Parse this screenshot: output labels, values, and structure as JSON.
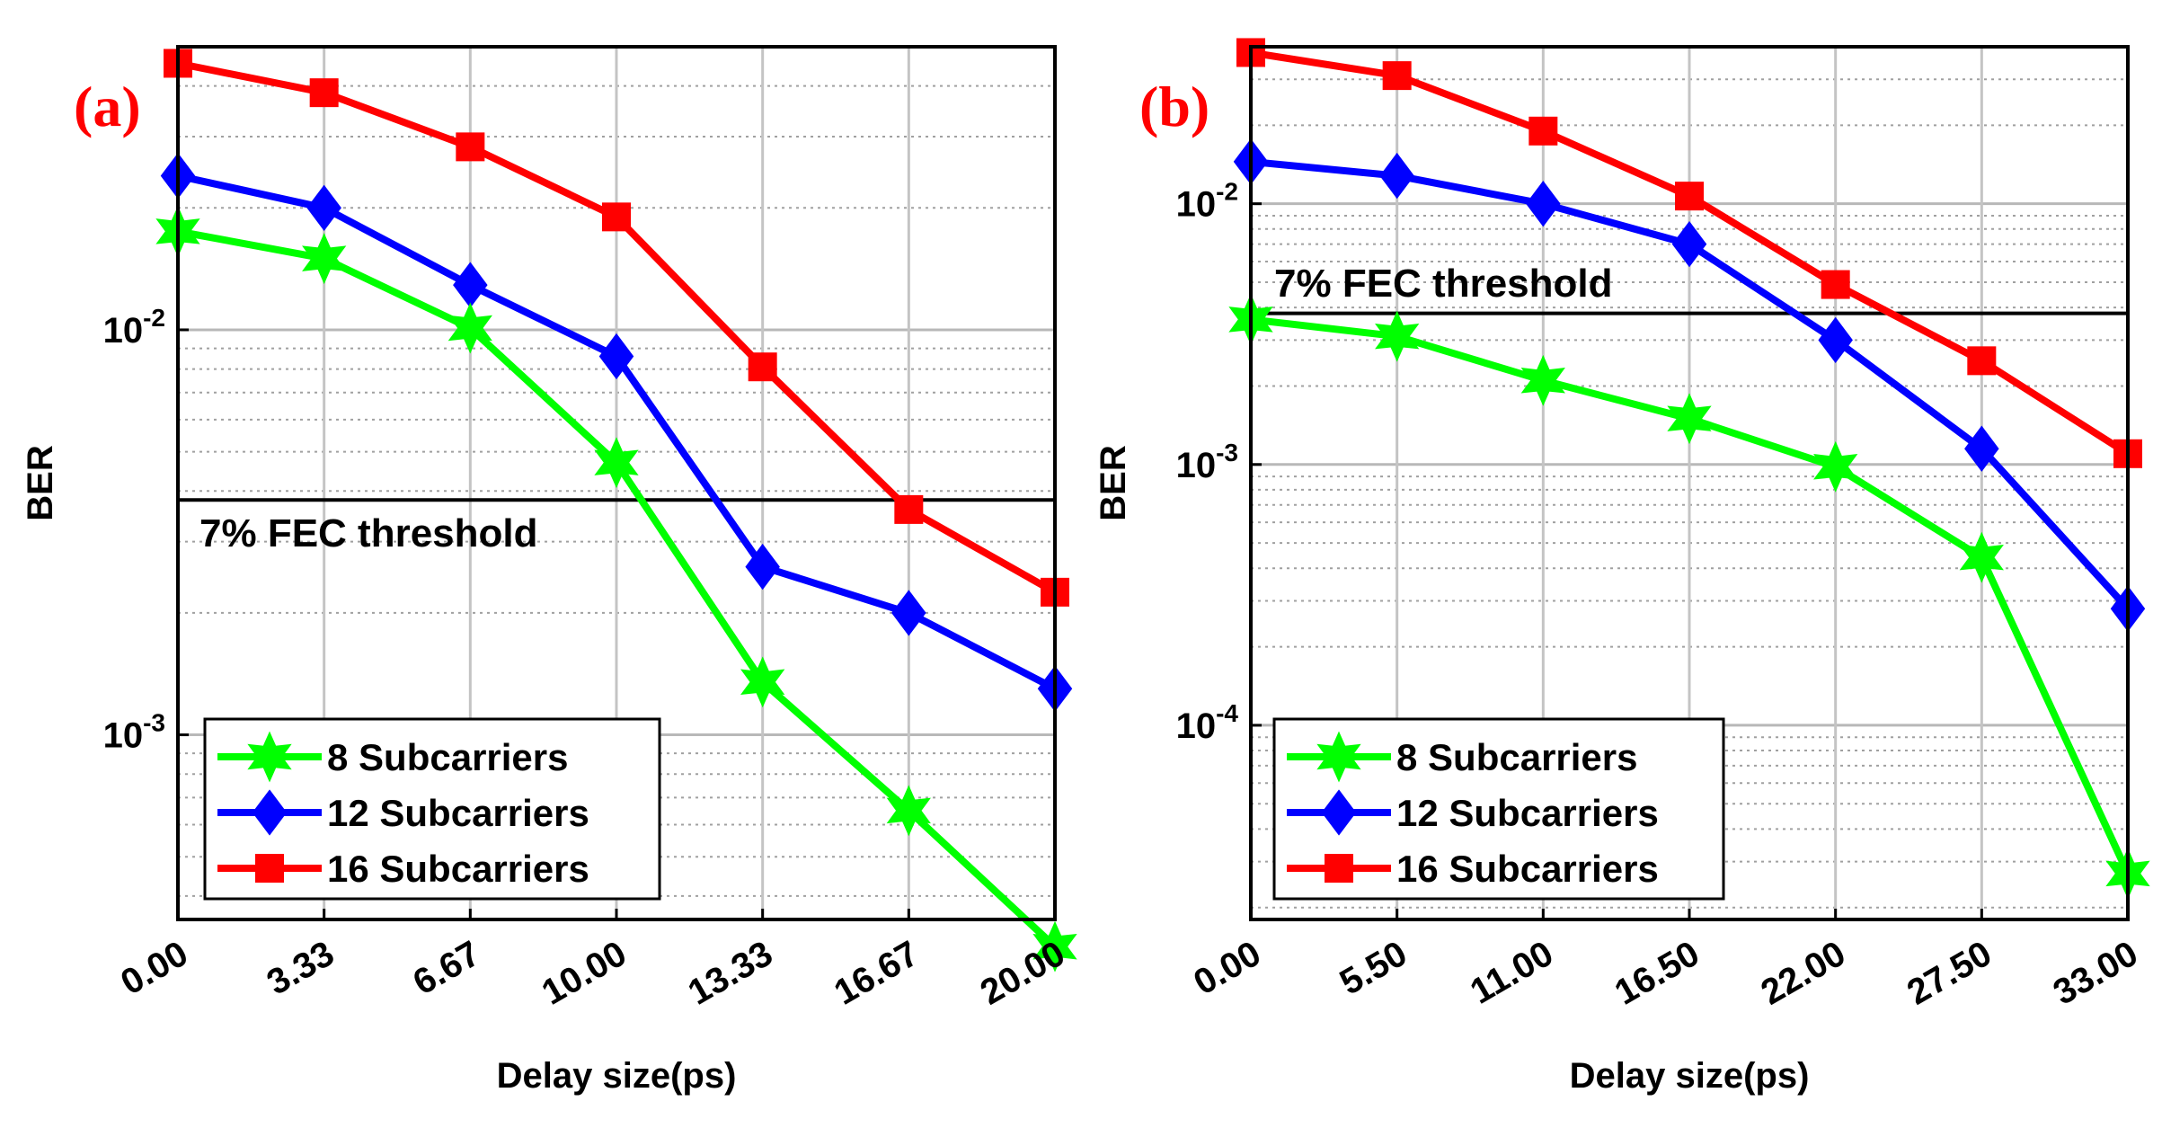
{
  "chart_data": [
    {
      "type": "line",
      "panel_label": "(a)",
      "xlabel": "Delay size(ps)",
      "ylabel": "BER",
      "yscale": "log",
      "ylim": [
        0.00035,
        0.05
      ],
      "categories": [
        "0.00",
        "3.33",
        "6.67",
        "10.00",
        "13.33",
        "16.67",
        "20.00"
      ],
      "y_ticks": [
        {
          "value": 0.01,
          "base": "10",
          "exp": "-2"
        },
        {
          "value": 0.001,
          "base": "10",
          "exp": "-3"
        }
      ],
      "grid": true,
      "threshold": {
        "value": 0.0038,
        "label": "7% FEC threshold"
      },
      "legend_position": "bottom-left",
      "series": [
        {
          "name": "8 Subcarriers",
          "color": "#00ff00",
          "marker": "hexagram",
          "values": [
            0.0175,
            0.015,
            0.0101,
            0.0047,
            0.00135,
            0.00065,
            0.0003
          ]
        },
        {
          "name": "12 Subcarriers",
          "color": "#0000ff",
          "marker": "diamond",
          "values": [
            0.024,
            0.02,
            0.0129,
            0.0086,
            0.0026,
            0.002,
            0.0013
          ]
        },
        {
          "name": "16 Subcarriers",
          "color": "#ff0000",
          "marker": "square",
          "values": [
            0.0455,
            0.0385,
            0.0283,
            0.019,
            0.0081,
            0.0036,
            0.00225
          ]
        }
      ]
    },
    {
      "type": "line",
      "panel_label": "(b)",
      "xlabel": "Delay size(ps)",
      "ylabel": "BER",
      "yscale": "log",
      "ylim": [
        1.8e-05,
        0.04
      ],
      "categories": [
        "0.00",
        "5.50",
        "11.00",
        "16.50",
        "22.00",
        "27.50",
        "33.00"
      ],
      "y_ticks": [
        {
          "value": 0.01,
          "base": "10",
          "exp": "-2"
        },
        {
          "value": 0.001,
          "base": "10",
          "exp": "-3"
        },
        {
          "value": 0.0001,
          "base": "10",
          "exp": "-4"
        }
      ],
      "grid": true,
      "threshold": {
        "value": 0.0038,
        "label": "7% FEC threshold"
      },
      "legend_position": "bottom-left",
      "series": [
        {
          "name": "8 Subcarriers",
          "color": "#00ff00",
          "marker": "hexagram",
          "values": [
            0.0036,
            0.0031,
            0.0021,
            0.0015,
            0.00098,
            0.00044,
            2.7e-05
          ]
        },
        {
          "name": "12 Subcarriers",
          "color": "#0000ff",
          "marker": "diamond",
          "values": [
            0.0145,
            0.0128,
            0.01,
            0.007,
            0.003,
            0.00115,
            0.00028
          ]
        },
        {
          "name": "16 Subcarriers",
          "color": "#ff0000",
          "marker": "square",
          "values": [
            0.038,
            0.031,
            0.019,
            0.0107,
            0.0049,
            0.0025,
            0.0011
          ]
        }
      ]
    }
  ]
}
